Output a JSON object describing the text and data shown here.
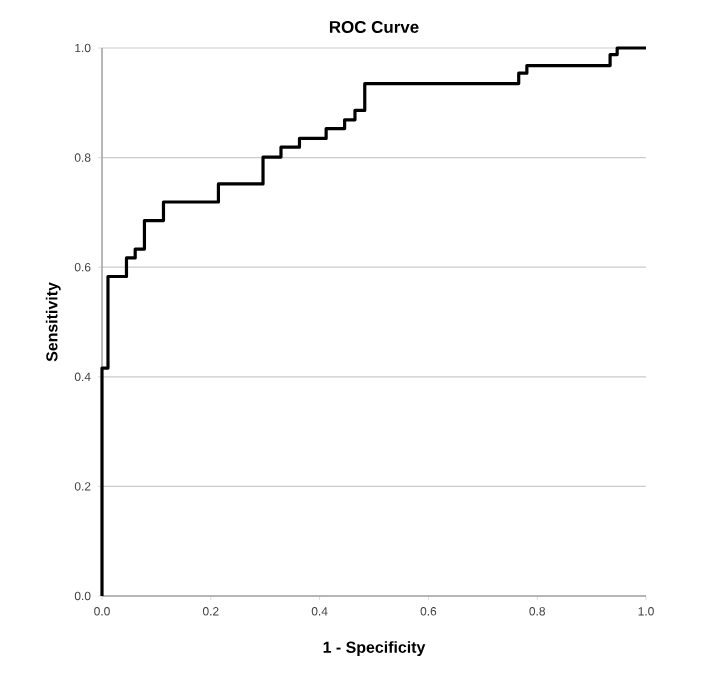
{
  "chart_data": {
    "type": "step",
    "title": "ROC Curve",
    "xlabel": "1 - Specificity",
    "ylabel": "Sensitivity",
    "x": [
      0,
      0,
      0.011,
      0.045,
      0.061,
      0.078,
      0.113,
      0.214,
      0.296,
      0.329,
      0.363,
      0.412,
      0.446,
      0.465,
      0.483,
      0.766,
      0.781,
      0.934,
      0.947,
      1.0
    ],
    "values": [
      0,
      0.416,
      0.583,
      0.617,
      0.633,
      0.685,
      0.719,
      0.752,
      0.801,
      0.819,
      0.835,
      0.853,
      0.869,
      0.886,
      0.935,
      0.954,
      0.968,
      0.988,
      1.0,
      1.0
    ],
    "color": "#000000",
    "xlim": [
      0,
      1
    ],
    "ylim": [
      0,
      1
    ],
    "xticks": [
      {
        "value": 0,
        "label": "0.0"
      },
      {
        "value": 0.2,
        "label": "0.2"
      },
      {
        "value": 0.4,
        "label": "0.4"
      },
      {
        "value": 0.6,
        "label": "0.6"
      },
      {
        "value": 0.8,
        "label": "0.8"
      },
      {
        "value": 1,
        "label": "1.0"
      }
    ],
    "yticks": [
      {
        "value": 0,
        "label": "0.0"
      },
      {
        "value": 0.2,
        "label": "0.2"
      },
      {
        "value": 0.4,
        "label": "0.4"
      },
      {
        "value": 0.6,
        "label": "0.6"
      },
      {
        "value": 0.8,
        "label": "0.8"
      },
      {
        "value": 1,
        "label": "1.0"
      }
    ],
    "grid": "y"
  }
}
